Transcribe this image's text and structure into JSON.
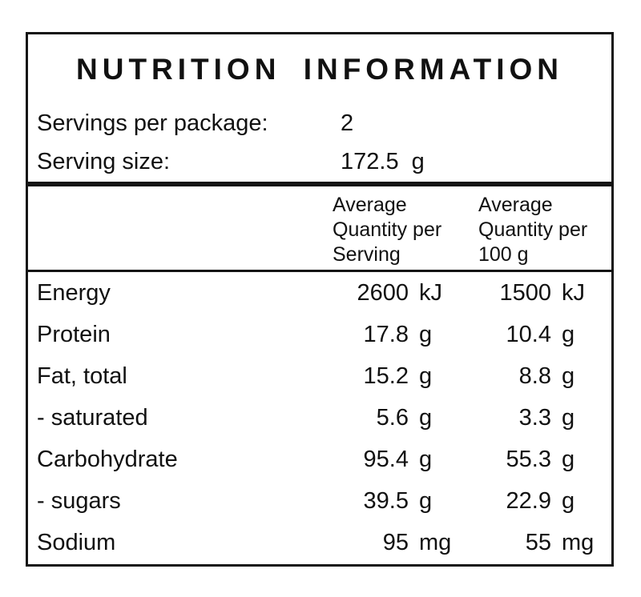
{
  "label": {
    "title": "NUTRITION INFORMATION",
    "servings_per_package": {
      "label": "Servings per package:",
      "value": "2"
    },
    "serving_size": {
      "label": "Serving size:",
      "value": "172.5",
      "unit": "g"
    },
    "column_headers": [
      {
        "lines": [
          "Average",
          "Quantity per",
          "Serving"
        ]
      },
      {
        "lines": [
          "Average",
          "Quantity per",
          "100 g"
        ]
      }
    ],
    "rows": [
      {
        "nutrient": "Energy",
        "per_serving": {
          "value": "2600",
          "unit": "kJ"
        },
        "per_100g": {
          "value": "1500",
          "unit": "kJ"
        }
      },
      {
        "nutrient": "Protein",
        "per_serving": {
          "value": "17.8",
          "unit": "g"
        },
        "per_100g": {
          "value": "10.4",
          "unit": "g"
        }
      },
      {
        "nutrient": "Fat, total",
        "per_serving": {
          "value": "15.2",
          "unit": "g"
        },
        "per_100g": {
          "value": "8.8",
          "unit": "g"
        }
      },
      {
        "nutrient": "- saturated",
        "per_serving": {
          "value": "5.6",
          "unit": "g"
        },
        "per_100g": {
          "value": "3.3",
          "unit": "g"
        }
      },
      {
        "nutrient": "Carbohydrate",
        "per_serving": {
          "value": "95.4",
          "unit": "g"
        },
        "per_100g": {
          "value": "55.3",
          "unit": "g"
        }
      },
      {
        "nutrient": "- sugars",
        "per_serving": {
          "value": "39.5",
          "unit": "g"
        },
        "per_100g": {
          "value": "22.9",
          "unit": "g"
        }
      },
      {
        "nutrient": "Sodium",
        "per_serving": {
          "value": "95",
          "unit": "mg"
        },
        "per_100g": {
          "value": "55",
          "unit": "mg"
        }
      }
    ],
    "colors": {
      "text": "#111111",
      "border": "#141414",
      "background": "#ffffff"
    }
  }
}
